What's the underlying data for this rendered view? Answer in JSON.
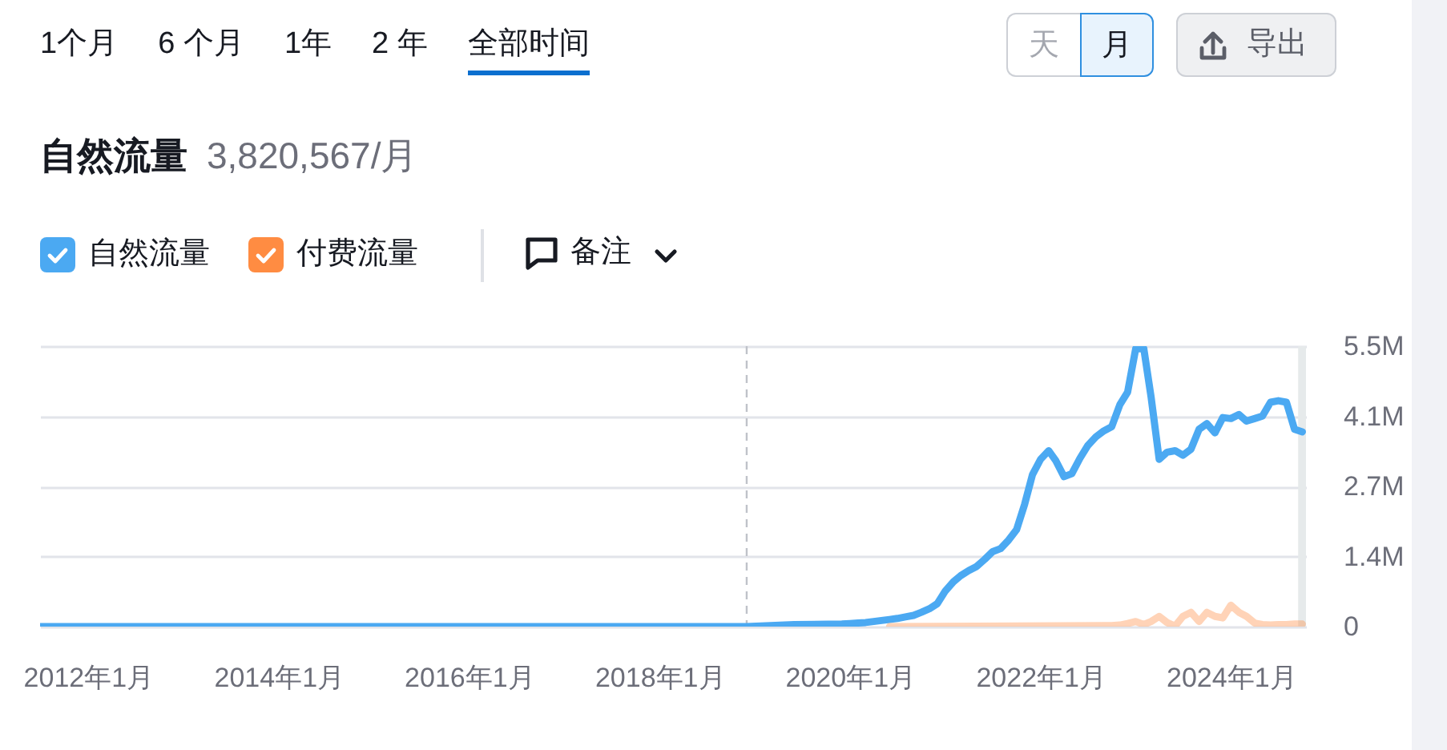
{
  "chart_data": {
    "type": "line",
    "title": "自然流量",
    "subtitle": "3,820,567/月",
    "annotations": [
      "1个月",
      "6 个月",
      "1年",
      "2 年",
      "全部时间",
      "天",
      "月",
      "导出",
      "备注"
    ],
    "series": [
      {
        "name": "自然流量",
        "color": "#4ba9f2",
        "x": [
          "2011-07",
          "2018-12",
          "2019-06",
          "2019-12",
          "2020-01",
          "2020-02",
          "2020-03",
          "2020-04",
          "2020-05",
          "2020-06",
          "2020-07",
          "2020-08",
          "2020-09",
          "2020-10",
          "2020-11",
          "2020-12",
          "2021-01",
          "2021-02",
          "2021-03",
          "2021-04",
          "2021-05",
          "2021-06",
          "2021-07",
          "2021-08",
          "2021-09",
          "2021-10",
          "2021-11",
          "2021-12",
          "2022-01",
          "2022-02",
          "2022-03",
          "2022-04",
          "2022-05",
          "2022-06",
          "2022-07",
          "2022-08",
          "2022-09",
          "2022-10",
          "2022-11",
          "2022-12",
          "2023-01",
          "2023-02",
          "2023-03",
          "2023-04",
          "2023-05",
          "2023-06",
          "2023-07",
          "2023-08",
          "2023-09",
          "2023-10",
          "2023-11",
          "2023-12",
          "2024-01",
          "2024-02",
          "2024-03",
          "2024-04",
          "2024-05",
          "2024-06",
          "2024-07",
          "2024-08",
          "2024-09",
          "2024-10"
        ],
        "values": [
          0,
          0,
          40000,
          50000,
          60000,
          70000,
          80000,
          100000,
          120000,
          140000,
          160000,
          190000,
          220000,
          280000,
          350000,
          450000,
          700000,
          880000,
          1000000,
          1100000,
          1180000,
          1320000,
          1470000,
          1530000,
          1700000,
          1900000,
          2400000,
          2980000,
          3280000,
          3450000,
          3250000,
          2940000,
          3000000,
          3300000,
          3550000,
          3720000,
          3840000,
          3920000,
          4350000,
          4600000,
          5450000,
          5450000,
          4500000,
          3280000,
          3420000,
          3450000,
          3360000,
          3480000,
          3870000,
          3980000,
          3800000,
          4100000,
          4080000,
          4160000,
          4030000,
          4080000,
          4130000,
          4400000,
          4430000,
          4400000,
          3870000,
          3820000
        ]
      },
      {
        "name": "付费流量",
        "color": "#ff8c42",
        "x": [
          "2020-06",
          "2022-09",
          "2022-10",
          "2022-11",
          "2022-12",
          "2023-01",
          "2023-02",
          "2023-03",
          "2023-04",
          "2023-05",
          "2023-06",
          "2023-07",
          "2023-08",
          "2023-09",
          "2023-10",
          "2023-11",
          "2023-12",
          "2024-01",
          "2024-02",
          "2024-03",
          "2024-04",
          "2024-05",
          "2024-06",
          "2024-07",
          "2024-08",
          "2024-09",
          "2024-10"
        ],
        "values": [
          0,
          20000,
          20000,
          30000,
          60000,
          100000,
          40000,
          100000,
          200000,
          80000,
          10000,
          200000,
          280000,
          100000,
          280000,
          200000,
          170000,
          420000,
          280000,
          200000,
          70000,
          40000,
          30000,
          40000,
          40000,
          50000,
          50000
        ]
      }
    ],
    "xlim": [
      "2011-07",
      "2024-10-15"
    ],
    "xticks": [
      {
        "value": "2012-01",
        "label": "2012年1月"
      },
      {
        "value": "2014-01",
        "label": "2014年1月"
      },
      {
        "value": "2016-01",
        "label": "2016年1月"
      },
      {
        "value": "2018-01",
        "label": "2018年1月"
      },
      {
        "value": "2020-01",
        "label": "2020年1月"
      },
      {
        "value": "2022-01",
        "label": "2022年1月"
      },
      {
        "value": "2024-01",
        "label": "2024年1月"
      }
    ],
    "ylim": [
      0,
      5500000
    ],
    "yticks": [
      0,
      {
        "value": 1375000,
        "label": "1.4M"
      },
      {
        "value": 2750000,
        "label": "2.7M"
      },
      {
        "value": 4125000,
        "label": "4.1M"
      },
      {
        "value": 5500000,
        "label": "5.5M"
      }
    ],
    "grid": "y",
    "legend": "top left",
    "ref_lines": [
      {
        "axis": "x",
        "value": "2018-12",
        "color": "#bfc2c9",
        "line_style": "dashed"
      }
    ],
    "bands": [
      {
        "axis": "x",
        "from": "2024-09-15",
        "to": "2024-10-15",
        "color": "#e6eaeb"
      }
    ]
  }
}
